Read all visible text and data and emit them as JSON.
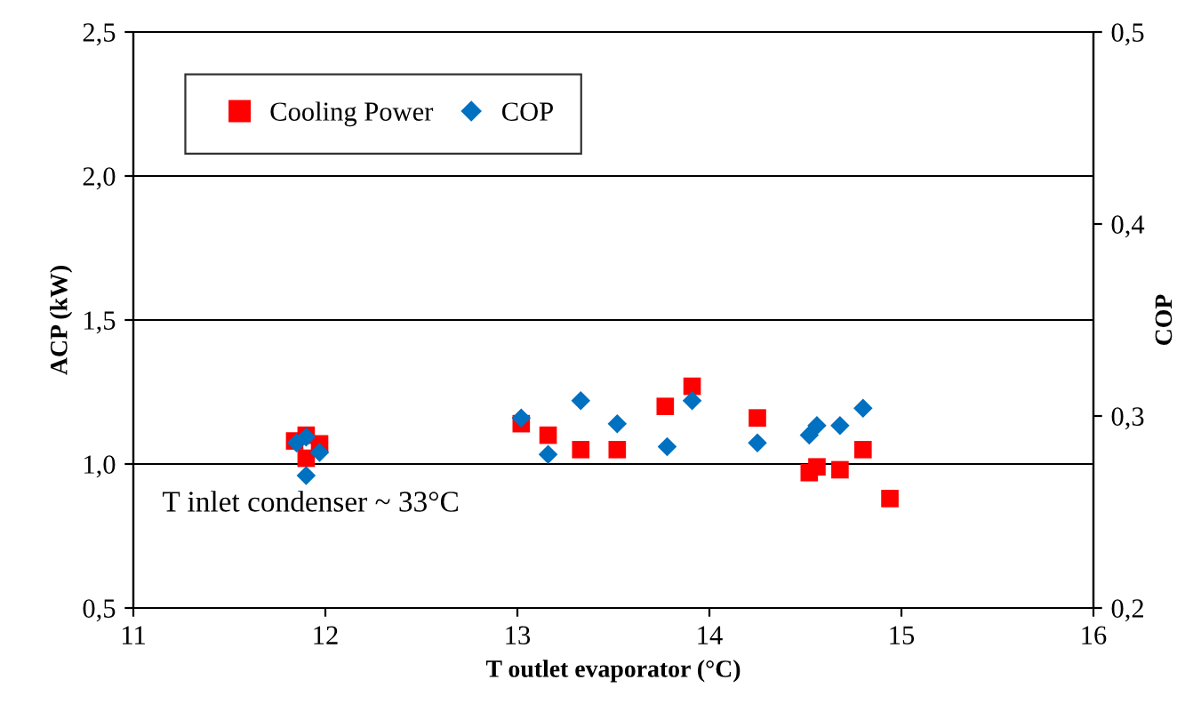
{
  "chart_data": {
    "type": "scatter",
    "xlabel": "T outlet evaporator (°C)",
    "ylabel": "ACP (kW)",
    "y2label": "COP",
    "series": [
      {
        "name": "Cooling Power",
        "color": "#ff0000",
        "marker": "square",
        "x": [
          11.84,
          11.9,
          11.9,
          11.97,
          13.02,
          13.16,
          13.33,
          13.52,
          13.77,
          13.91,
          14.25,
          14.52,
          14.56,
          14.68,
          14.8,
          14.94
        ],
        "values": [
          1.08,
          1.1,
          1.02,
          1.07,
          1.14,
          1.1,
          1.05,
          1.05,
          1.2,
          1.27,
          1.16,
          0.97,
          0.99,
          0.98,
          1.05,
          0.88
        ]
      },
      {
        "name": "COP",
        "color": "#0070c0",
        "marker": "diamond",
        "axis": "y2",
        "x": [
          11.85,
          11.9,
          11.9,
          11.97,
          13.02,
          13.16,
          13.33,
          13.52,
          13.78,
          13.91,
          14.25,
          14.52,
          14.56,
          14.68,
          14.8
        ],
        "values": [
          0.286,
          0.289,
          0.269,
          0.281,
          0.299,
          0.28,
          0.308,
          0.296,
          0.284,
          0.308,
          0.286,
          0.29,
          0.295,
          0.295,
          0.304
        ]
      }
    ],
    "xlim": [
      11,
      16
    ],
    "xticks": [
      11,
      12,
      13,
      14,
      15,
      16
    ],
    "ylim": [
      0.5,
      2.5
    ],
    "yticks": [
      {
        "value": 0.5,
        "label": "0,5"
      },
      {
        "value": 1.0,
        "label": "1,0"
      },
      {
        "value": 1.5,
        "label": "1,5"
      },
      {
        "value": 2.0,
        "label": "2,0"
      },
      {
        "value": 2.5,
        "label": "2,5"
      }
    ],
    "y2lim": [
      0.2,
      0.5
    ],
    "y2ticks": [
      {
        "value": 0.2,
        "label": "0,2"
      },
      {
        "value": 0.3,
        "label": "0,3"
      },
      {
        "value": 0.4,
        "label": "0,4"
      },
      {
        "value": 0.5,
        "label": "0,5"
      }
    ],
    "grid": "y",
    "legend": "top left",
    "annotations": [
      "T inlet condenser ~ 33°C"
    ]
  }
}
